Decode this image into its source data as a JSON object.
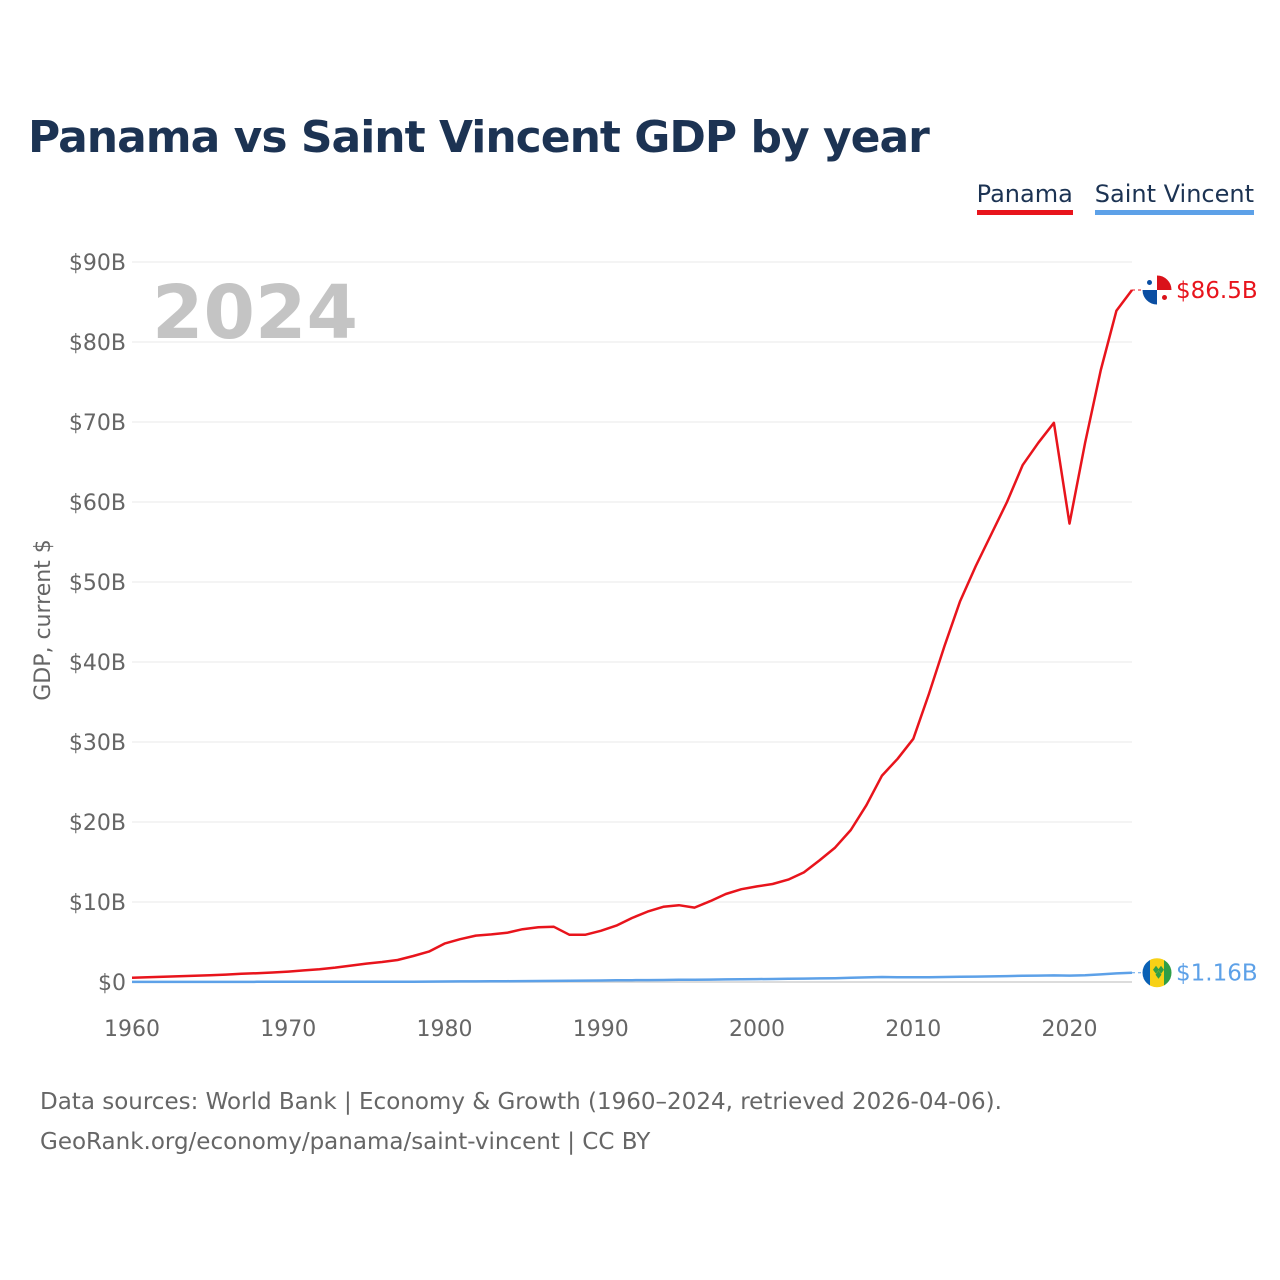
{
  "title": "Panama vs Saint Vincent GDP by year",
  "legend": {
    "items": [
      "Panama",
      "Saint Vincent"
    ]
  },
  "sources": {
    "line1": "Data sources: World Bank | Economy & Growth (1960–2024, retrieved 2026-04-06).",
    "line2": "GeoRank.org/economy/panama/saint-vincent | CC BY"
  },
  "chart_data": {
    "type": "line",
    "title": "Panama vs Saint Vincent GDP by year",
    "ylabel": "GDP, current $",
    "xlabel": "",
    "year_label": "2024",
    "xlim": [
      1960,
      2024
    ],
    "ylim": [
      0,
      90
    ],
    "x_ticks": [
      "1960",
      "1970",
      "1980",
      "1990",
      "2000",
      "2010",
      "2020"
    ],
    "x_tick_values": [
      1960,
      1970,
      1980,
      1990,
      2000,
      2010,
      2020
    ],
    "y_ticks": [
      "$0",
      "$10B",
      "$20B",
      "$30B",
      "$40B",
      "$50B",
      "$60B",
      "$70B",
      "$80B",
      "$90B"
    ],
    "y_tick_values": [
      0,
      10,
      20,
      30,
      40,
      50,
      60,
      70,
      80,
      90
    ],
    "grid": true,
    "legend_position": "top-right",
    "unit": "billions of current US$",
    "x": [
      1960,
      1961,
      1962,
      1963,
      1964,
      1965,
      1966,
      1967,
      1968,
      1969,
      1970,
      1971,
      1972,
      1973,
      1974,
      1975,
      1976,
      1977,
      1978,
      1979,
      1980,
      1981,
      1982,
      1983,
      1984,
      1985,
      1986,
      1987,
      1988,
      1989,
      1990,
      1991,
      1992,
      1993,
      1994,
      1995,
      1996,
      1997,
      1998,
      1999,
      2000,
      2001,
      2002,
      2003,
      2004,
      2005,
      2006,
      2007,
      2008,
      2009,
      2010,
      2011,
      2012,
      2013,
      2014,
      2015,
      2016,
      2017,
      2018,
      2019,
      2020,
      2021,
      2022,
      2023,
      2024
    ],
    "series": [
      {
        "name": "Panama",
        "color": "#e8141c",
        "end_label": "$86.5B",
        "values": [
          0.54,
          0.6,
          0.66,
          0.72,
          0.78,
          0.85,
          0.93,
          1.02,
          1.1,
          1.19,
          1.3,
          1.45,
          1.6,
          1.8,
          2.05,
          2.3,
          2.5,
          2.75,
          3.25,
          3.8,
          4.8,
          5.35,
          5.8,
          5.95,
          6.15,
          6.6,
          6.85,
          6.9,
          5.9,
          5.9,
          6.4,
          7.05,
          8.0,
          8.8,
          9.4,
          9.6,
          9.3,
          10.1,
          11.0,
          11.6,
          11.95,
          12.25,
          12.8,
          13.7,
          15.2,
          16.8,
          19.0,
          22.1,
          25.8,
          27.9,
          30.4,
          36.0,
          42.0,
          47.6,
          52.0,
          56.0,
          60.0,
          64.6,
          67.4,
          69.9,
          57.3,
          67.4,
          76.5,
          83.9,
          86.5
        ]
      },
      {
        "name": "Saint Vincent",
        "color": "#5da1e8",
        "end_label": "$1.16B",
        "values": [
          0.01,
          0.01,
          0.01,
          0.01,
          0.01,
          0.01,
          0.01,
          0.01,
          0.02,
          0.02,
          0.02,
          0.02,
          0.02,
          0.02,
          0.03,
          0.03,
          0.03,
          0.04,
          0.04,
          0.05,
          0.06,
          0.07,
          0.08,
          0.09,
          0.1,
          0.11,
          0.12,
          0.14,
          0.15,
          0.17,
          0.19,
          0.21,
          0.23,
          0.24,
          0.25,
          0.27,
          0.28,
          0.3,
          0.32,
          0.34,
          0.36,
          0.38,
          0.4,
          0.42,
          0.45,
          0.48,
          0.52,
          0.58,
          0.62,
          0.6,
          0.6,
          0.6,
          0.62,
          0.65,
          0.67,
          0.7,
          0.74,
          0.78,
          0.8,
          0.82,
          0.8,
          0.84,
          0.95,
          1.07,
          1.16
        ]
      }
    ]
  }
}
